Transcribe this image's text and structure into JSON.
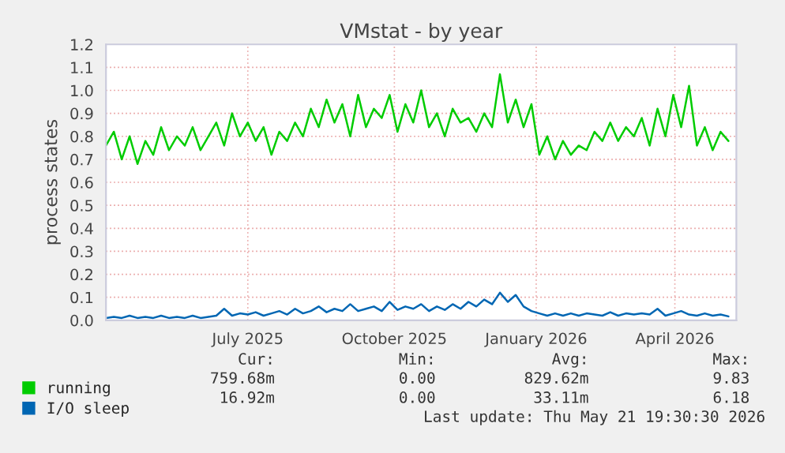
{
  "chart_data": {
    "type": "line",
    "title": "VMstat - by year",
    "ylabel": "process states",
    "x": [
      "2025-04-16",
      "2025-04-21",
      "2025-04-26",
      "2025-05-01",
      "2025-05-06",
      "2025-05-11",
      "2025-05-16",
      "2025-05-21",
      "2025-05-26",
      "2025-05-31",
      "2025-06-05",
      "2025-06-10",
      "2025-06-15",
      "2025-06-20",
      "2025-06-25",
      "2025-06-30",
      "2025-07-05",
      "2025-07-10",
      "2025-07-15",
      "2025-07-20",
      "2025-07-25",
      "2025-07-30",
      "2025-08-04",
      "2025-08-09",
      "2025-08-14",
      "2025-08-19",
      "2025-08-24",
      "2025-08-29",
      "2025-09-03",
      "2025-09-08",
      "2025-09-13",
      "2025-09-18",
      "2025-09-23",
      "2025-09-28",
      "2025-10-03",
      "2025-10-08",
      "2025-10-13",
      "2025-10-18",
      "2025-10-23",
      "2025-10-28",
      "2025-11-02",
      "2025-11-07",
      "2025-11-12",
      "2025-11-17",
      "2025-11-22",
      "2025-11-27",
      "2025-12-02",
      "2025-12-07",
      "2025-12-12",
      "2025-12-17",
      "2025-12-22",
      "2025-12-27",
      "2026-01-01",
      "2026-01-06",
      "2026-01-11",
      "2026-01-16",
      "2026-01-21",
      "2026-01-26",
      "2026-01-31",
      "2026-02-05",
      "2026-02-10",
      "2026-02-15",
      "2026-02-20",
      "2026-02-25",
      "2026-03-02",
      "2026-03-07",
      "2026-03-12",
      "2026-03-17",
      "2026-03-22",
      "2026-03-27",
      "2026-04-01",
      "2026-04-06",
      "2026-04-11",
      "2026-04-16",
      "2026-04-21",
      "2026-04-26",
      "2026-05-01",
      "2026-05-06",
      "2026-05-11",
      "2026-05-16"
    ],
    "series": [
      {
        "name": "running",
        "color": "#00cc00",
        "values": [
          0.76,
          0.82,
          0.7,
          0.8,
          0.68,
          0.78,
          0.72,
          0.84,
          0.74,
          0.8,
          0.76,
          0.84,
          0.74,
          0.8,
          0.86,
          0.76,
          0.9,
          0.8,
          0.86,
          0.78,
          0.84,
          0.72,
          0.82,
          0.78,
          0.86,
          0.8,
          0.92,
          0.84,
          0.96,
          0.86,
          0.94,
          0.8,
          0.98,
          0.84,
          0.92,
          0.88,
          0.98,
          0.82,
          0.94,
          0.86,
          1.0,
          0.84,
          0.9,
          0.8,
          0.92,
          0.86,
          0.88,
          0.82,
          0.9,
          0.84,
          1.07,
          0.86,
          0.96,
          0.84,
          0.94,
          0.72,
          0.8,
          0.7,
          0.78,
          0.72,
          0.76,
          0.74,
          0.82,
          0.78,
          0.86,
          0.78,
          0.84,
          0.8,
          0.88,
          0.76,
          0.92,
          0.8,
          0.98,
          0.84,
          1.02,
          0.76,
          0.84,
          0.74,
          0.82,
          0.78
        ]
      },
      {
        "name": "I/O sleep",
        "color": "#0066b3",
        "values": [
          0.01,
          0.015,
          0.01,
          0.02,
          0.01,
          0.015,
          0.01,
          0.02,
          0.01,
          0.015,
          0.01,
          0.02,
          0.01,
          0.015,
          0.02,
          0.05,
          0.02,
          0.03,
          0.025,
          0.035,
          0.02,
          0.03,
          0.04,
          0.025,
          0.05,
          0.03,
          0.04,
          0.06,
          0.035,
          0.05,
          0.04,
          0.07,
          0.04,
          0.05,
          0.06,
          0.04,
          0.08,
          0.045,
          0.06,
          0.05,
          0.07,
          0.04,
          0.06,
          0.045,
          0.07,
          0.05,
          0.08,
          0.06,
          0.09,
          0.07,
          0.12,
          0.08,
          0.11,
          0.06,
          0.04,
          0.03,
          0.02,
          0.03,
          0.02,
          0.03,
          0.02,
          0.03,
          0.025,
          0.02,
          0.035,
          0.02,
          0.03,
          0.025,
          0.03,
          0.025,
          0.05,
          0.02,
          0.03,
          0.04,
          0.025,
          0.02,
          0.03,
          0.02,
          0.025,
          0.017
        ]
      }
    ],
    "xlim": [
      "2025-04-16",
      "2026-05-21"
    ],
    "xticks": [
      {
        "value": "2025-07-15",
        "label": "July 2025"
      },
      {
        "value": "2025-10-16",
        "label": "October 2025"
      },
      {
        "value": "2026-01-14",
        "label": "January 2026"
      },
      {
        "value": "2026-04-12",
        "label": "April 2026"
      }
    ],
    "ylim": [
      0,
      1.2
    ],
    "yticks": [
      {
        "value": 0,
        "label": "0.0"
      },
      {
        "value": 0.1,
        "label": "0.1"
      },
      {
        "value": 0.2,
        "label": "0.2"
      },
      {
        "value": 0.3,
        "label": "0.3"
      },
      {
        "value": 0.4,
        "label": "0.4"
      },
      {
        "value": 0.5,
        "label": "0.5"
      },
      {
        "value": 0.6,
        "label": "0.6"
      },
      {
        "value": 0.7,
        "label": "0.7"
      },
      {
        "value": 0.8,
        "label": "0.8"
      },
      {
        "value": 0.9,
        "label": "0.9"
      },
      {
        "value": 1.0,
        "label": "1.0"
      },
      {
        "value": 1.1,
        "label": "1.1"
      },
      {
        "value": 1.2,
        "label": "1.2"
      }
    ],
    "grid": true,
    "legend": "bottom",
    "line_style": "solid",
    "annotations": [
      "Cur:",
      "Min:",
      "Avg:",
      "Max:",
      "759.68m",
      "0.00",
      "829.62m",
      "9.83",
      "16.92m",
      "0.00",
      "33.11m",
      "6.18",
      "Last update: Thu May 21 19:30:30 2026"
    ]
  }
}
